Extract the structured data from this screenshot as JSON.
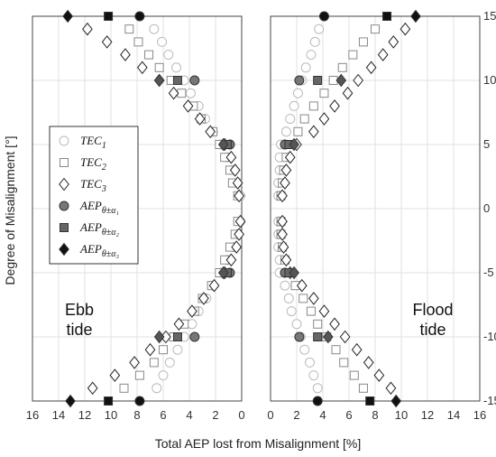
{
  "chart_data": {
    "type": "scatter",
    "ylabel": "Degree of Misalignment [°]",
    "xlabel": "Total AEP lost from Misalignment [%]",
    "ylim": [
      -15,
      15
    ],
    "yticks": [
      -15,
      -10,
      -5,
      0,
      5,
      10,
      15
    ],
    "grid": true,
    "legend": {
      "placement": "left-panel center-left",
      "entries": [
        {
          "key": "tec1",
          "label": "TEC",
          "sub": "1"
        },
        {
          "key": "tec2",
          "label": "TEC",
          "sub": "2"
        },
        {
          "key": "tec3",
          "label": "TEC",
          "sub": "3"
        },
        {
          "key": "aep1",
          "label": "AEP",
          "sub": "θ±α₁"
        },
        {
          "key": "aep2",
          "label": "AEP",
          "sub": "θ±α₂"
        },
        {
          "key": "aep3",
          "label": "AEP",
          "sub": "θ±α₃"
        }
      ]
    },
    "panels": [
      {
        "name": "ebb",
        "annotation_lines": [
          "Ebb",
          "tide"
        ],
        "xlim": [
          16,
          0
        ],
        "xticks": [
          16,
          14,
          12,
          10,
          8,
          6,
          4,
          2,
          0
        ],
        "x_reversed": true,
        "series": [
          {
            "key": "tec1",
            "marker": "circle",
            "style": "open",
            "color": "#bbbbbb",
            "points": [
              [
                6.7,
                14
              ],
              [
                6.1,
                13
              ],
              [
                5.6,
                12
              ],
              [
                5.0,
                11
              ],
              [
                4.4,
                10
              ],
              [
                3.9,
                9
              ],
              [
                3.3,
                8
              ],
              [
                2.8,
                7
              ],
              [
                2.2,
                6
              ],
              [
                1.6,
                5
              ],
              [
                1.1,
                4
              ],
              [
                0.6,
                3
              ],
              [
                0.3,
                2
              ],
              [
                0.1,
                1
              ],
              [
                0.1,
                -1
              ],
              [
                0.3,
                -2
              ],
              [
                0.6,
                -3
              ],
              [
                1.1,
                -4
              ],
              [
                1.6,
                -5
              ],
              [
                2.2,
                -6
              ],
              [
                2.7,
                -7
              ],
              [
                3.3,
                -8
              ],
              [
                3.8,
                -9
              ],
              [
                4.4,
                -10
              ],
              [
                4.9,
                -11
              ],
              [
                5.5,
                -12
              ],
              [
                6.0,
                -13
              ],
              [
                6.5,
                -14
              ]
            ]
          },
          {
            "key": "tec2",
            "marker": "square",
            "style": "open",
            "color": "#888888",
            "points": [
              [
                8.6,
                14
              ],
              [
                7.9,
                13
              ],
              [
                7.1,
                12
              ],
              [
                6.3,
                11
              ],
              [
                5.4,
                10
              ],
              [
                4.6,
                9
              ],
              [
                3.7,
                8
              ],
              [
                3.1,
                7
              ],
              [
                2.2,
                6
              ],
              [
                1.7,
                5
              ],
              [
                1.3,
                4
              ],
              [
                0.9,
                3
              ],
              [
                0.7,
                2
              ],
              [
                0.3,
                1
              ],
              [
                0.3,
                -1
              ],
              [
                0.5,
                -2
              ],
              [
                0.9,
                -3
              ],
              [
                1.3,
                -4
              ],
              [
                1.7,
                -5
              ],
              [
                2.3,
                -6
              ],
              [
                3.0,
                -7
              ],
              [
                3.6,
                -8
              ],
              [
                4.4,
                -9
              ],
              [
                5.2,
                -10
              ],
              [
                6.0,
                -11
              ],
              [
                6.7,
                -12
              ],
              [
                7.8,
                -13
              ],
              [
                9.0,
                -14
              ]
            ]
          },
          {
            "key": "tec3",
            "marker": "diamond",
            "style": "open",
            "color": "#222222",
            "points": [
              [
                11.8,
                14
              ],
              [
                10.3,
                13
              ],
              [
                8.9,
                12
              ],
              [
                7.6,
                11
              ],
              [
                6.3,
                10
              ],
              [
                5.2,
                9
              ],
              [
                4.1,
                8
              ],
              [
                3.2,
                7
              ],
              [
                2.4,
                6
              ],
              [
                1.3,
                5
              ],
              [
                0.8,
                4
              ],
              [
                0.5,
                3
              ],
              [
                0.3,
                2
              ],
              [
                0.2,
                1
              ],
              [
                0.1,
                -1
              ],
              [
                0.2,
                -2
              ],
              [
                0.4,
                -3
              ],
              [
                0.8,
                -4
              ],
              [
                1.3,
                -5
              ],
              [
                2.1,
                -6
              ],
              [
                2.9,
                -7
              ],
              [
                3.8,
                -8
              ],
              [
                4.8,
                -9
              ],
              [
                5.8,
                -10
              ],
              [
                7.0,
                -11
              ],
              [
                8.2,
                -12
              ],
              [
                9.7,
                -13
              ],
              [
                11.4,
                -14
              ]
            ]
          },
          {
            "key": "aep1",
            "marker": "circle",
            "style": "filled",
            "color": "#777777",
            "points": [
              [
                3.6,
                10
              ],
              [
                0.9,
                5
              ],
              [
                0.9,
                -5
              ],
              [
                3.6,
                -10
              ]
            ]
          },
          {
            "key": "aep2",
            "marker": "square",
            "style": "filled",
            "color": "#666666",
            "points": [
              [
                4.9,
                10
              ],
              [
                1.1,
                5
              ],
              [
                1.1,
                -5
              ],
              [
                4.9,
                -10
              ]
            ]
          },
          {
            "key": "aep3",
            "marker": "diamond",
            "style": "filled",
            "color": "#555555",
            "points": [
              [
                6.3,
                10
              ],
              [
                1.4,
                5
              ],
              [
                1.4,
                -5
              ],
              [
                6.3,
                -10
              ]
            ]
          },
          {
            "key": "aep1b",
            "marker": "circle",
            "style": "filled",
            "color": "#111111",
            "points": [
              [
                7.8,
                15
              ],
              [
                7.8,
                -15
              ]
            ]
          },
          {
            "key": "aep2b",
            "marker": "square",
            "style": "filled",
            "color": "#111111",
            "points": [
              [
                10.2,
                15
              ],
              [
                10.2,
                -15
              ]
            ]
          },
          {
            "key": "aep3b",
            "marker": "diamond",
            "style": "filled",
            "color": "#111111",
            "points": [
              [
                13.3,
                15
              ],
              [
                13.1,
                -15
              ]
            ]
          }
        ]
      },
      {
        "name": "flood",
        "annotation_lines": [
          "Flood",
          "tide"
        ],
        "xlim": [
          0,
          16
        ],
        "xticks": [
          0,
          2,
          4,
          6,
          8,
          10,
          12,
          14,
          16
        ],
        "x_reversed": false,
        "series": [
          {
            "key": "tec1",
            "marker": "circle",
            "style": "open",
            "color": "#bbbbbb",
            "points": [
              [
                3.7,
                14
              ],
              [
                3.4,
                13
              ],
              [
                3.1,
                12
              ],
              [
                2.7,
                11
              ],
              [
                2.4,
                10
              ],
              [
                2.1,
                9
              ],
              [
                1.8,
                8
              ],
              [
                1.5,
                7
              ],
              [
                1.2,
                6
              ],
              [
                0.8,
                5
              ],
              [
                0.7,
                4
              ],
              [
                0.7,
                3
              ],
              [
                0.6,
                2
              ],
              [
                0.6,
                1
              ],
              [
                0.6,
                -1
              ],
              [
                0.6,
                -2
              ],
              [
                0.6,
                -3
              ],
              [
                0.7,
                -4
              ],
              [
                0.7,
                -5
              ],
              [
                1.1,
                -6
              ],
              [
                1.4,
                -7
              ],
              [
                1.6,
                -8
              ],
              [
                2.0,
                -9
              ],
              [
                2.3,
                -10
              ],
              [
                2.6,
                -11
              ],
              [
                3.0,
                -12
              ],
              [
                3.3,
                -13
              ],
              [
                3.6,
                -14
              ]
            ]
          },
          {
            "key": "tec2",
            "marker": "square",
            "style": "open",
            "color": "#888888",
            "points": [
              [
                8.0,
                14
              ],
              [
                7.1,
                13
              ],
              [
                6.3,
                12
              ],
              [
                5.5,
                11
              ],
              [
                4.8,
                10
              ],
              [
                4.1,
                9
              ],
              [
                3.3,
                8
              ],
              [
                2.6,
                7
              ],
              [
                2.1,
                6
              ],
              [
                1.6,
                5
              ],
              [
                1.2,
                4
              ],
              [
                1.0,
                3
              ],
              [
                0.9,
                2
              ],
              [
                0.8,
                1
              ],
              [
                0.8,
                -1
              ],
              [
                0.8,
                -2
              ],
              [
                0.9,
                -3
              ],
              [
                1.1,
                -4
              ],
              [
                1.4,
                -5
              ],
              [
                1.9,
                -6
              ],
              [
                2.5,
                -7
              ],
              [
                3.1,
                -8
              ],
              [
                3.6,
                -9
              ],
              [
                4.3,
                -10
              ],
              [
                5.0,
                -11
              ],
              [
                5.6,
                -12
              ],
              [
                6.4,
                -13
              ],
              [
                7.1,
                -14
              ]
            ]
          },
          {
            "key": "tec3",
            "marker": "diamond",
            "style": "open",
            "color": "#222222",
            "points": [
              [
                10.3,
                14
              ],
              [
                9.4,
                13
              ],
              [
                8.6,
                12
              ],
              [
                7.7,
                11
              ],
              [
                6.7,
                10
              ],
              [
                5.9,
                9
              ],
              [
                4.9,
                8
              ],
              [
                4.1,
                7
              ],
              [
                3.3,
                6
              ],
              [
                2.0,
                5
              ],
              [
                1.5,
                4
              ],
              [
                1.2,
                3
              ],
              [
                1.1,
                2
              ],
              [
                0.9,
                1
              ],
              [
                0.9,
                -1
              ],
              [
                0.9,
                -2
              ],
              [
                1.0,
                -3
              ],
              [
                1.2,
                -4
              ],
              [
                1.5,
                -5
              ],
              [
                2.4,
                -6
              ],
              [
                3.3,
                -7
              ],
              [
                4.1,
                -8
              ],
              [
                4.9,
                -9
              ],
              [
                5.7,
                -10
              ],
              [
                6.6,
                -11
              ],
              [
                7.5,
                -12
              ],
              [
                8.3,
                -13
              ],
              [
                9.2,
                -14
              ]
            ]
          },
          {
            "key": "aep1",
            "marker": "circle",
            "style": "filled",
            "color": "#777777",
            "points": [
              [
                2.2,
                10
              ],
              [
                1.1,
                5
              ],
              [
                1.1,
                -5
              ],
              [
                2.2,
                -10
              ]
            ]
          },
          {
            "key": "aep2",
            "marker": "square",
            "style": "filled",
            "color": "#666666",
            "points": [
              [
                3.6,
                10
              ],
              [
                1.4,
                5
              ],
              [
                1.4,
                -5
              ],
              [
                3.6,
                -10
              ]
            ]
          },
          {
            "key": "aep3",
            "marker": "diamond",
            "style": "filled",
            "color": "#555555",
            "points": [
              [
                5.4,
                10
              ],
              [
                1.8,
                5
              ],
              [
                1.8,
                -5
              ],
              [
                4.4,
                -10
              ]
            ]
          },
          {
            "key": "aep1b",
            "marker": "circle",
            "style": "filled",
            "color": "#111111",
            "points": [
              [
                4.1,
                15
              ],
              [
                3.6,
                -15
              ]
            ]
          },
          {
            "key": "aep2b",
            "marker": "square",
            "style": "filled",
            "color": "#111111",
            "points": [
              [
                8.9,
                15
              ],
              [
                7.6,
                -15
              ]
            ]
          },
          {
            "key": "aep3b",
            "marker": "diamond",
            "style": "filled",
            "color": "#111111",
            "points": [
              [
                11.1,
                15
              ],
              [
                9.6,
                -15
              ]
            ]
          }
        ]
      }
    ]
  }
}
